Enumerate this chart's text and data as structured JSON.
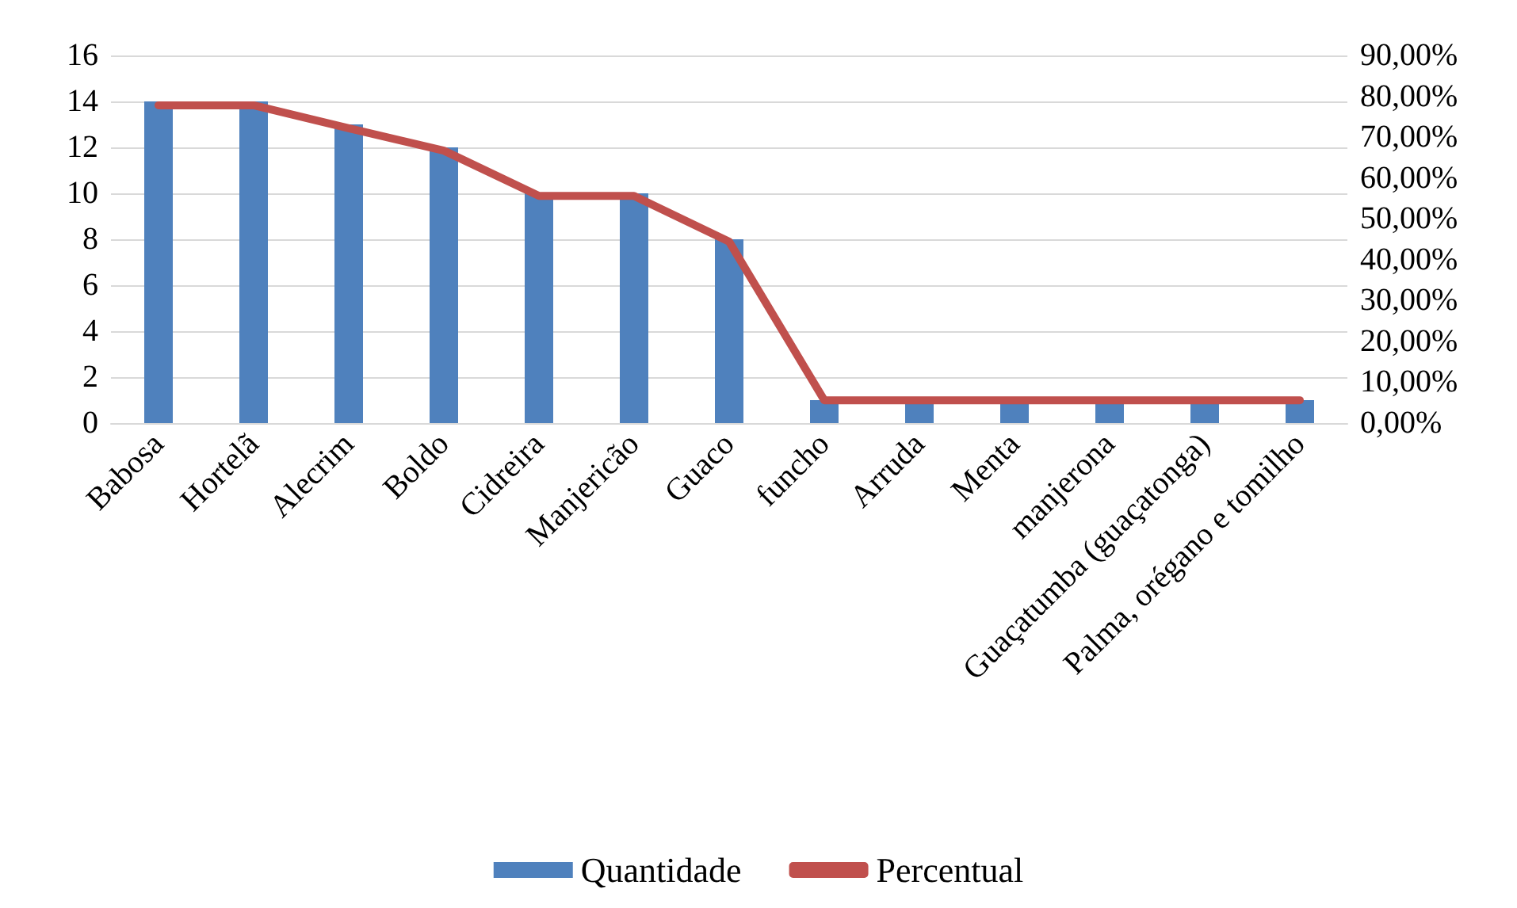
{
  "chart_data": {
    "type": "bar",
    "categories": [
      "Babosa",
      "Hortelã",
      "Alecrim",
      "Boldo",
      "Cidreira",
      "Manjericão",
      "Guaco",
      "funcho",
      "Arruda",
      "Menta",
      "manjerona",
      "Guaçatumba (guaçatonga)",
      "Palma, orégano e tomilho"
    ],
    "series": [
      {
        "name": "Quantidade",
        "color": "#4f81bd",
        "values": [
          14,
          14,
          13,
          12,
          10,
          10,
          8,
          1,
          1,
          1,
          1,
          1,
          1
        ]
      },
      {
        "name": "Percentual",
        "type": "line",
        "axis": "y2",
        "color": "#c0504d",
        "values": [
          77.8,
          77.8,
          72.2,
          66.7,
          55.6,
          55.6,
          44.4,
          5.6,
          5.6,
          5.6,
          5.6,
          5.6,
          5.6
        ]
      }
    ],
    "ylim": [
      0,
      16
    ],
    "yticks": [
      0,
      2,
      4,
      6,
      8,
      10,
      12,
      14,
      16
    ],
    "y2lim": [
      0,
      90
    ],
    "y2ticks": [
      {
        "value": 0,
        "label": "0,00%"
      },
      {
        "value": 10,
        "label": "10,00%"
      },
      {
        "value": 20,
        "label": "20,00%"
      },
      {
        "value": 30,
        "label": "30,00%"
      },
      {
        "value": 40,
        "label": "40,00%"
      },
      {
        "value": 50,
        "label": "50,00%"
      },
      {
        "value": 60,
        "label": "60,00%"
      },
      {
        "value": 70,
        "label": "70,00%"
      },
      {
        "value": 80,
        "label": "80,00%"
      },
      {
        "value": 90,
        "label": "90,00%"
      }
    ],
    "grid": "y",
    "legend": "bottom",
    "marker": "none",
    "line_style": "solid"
  }
}
